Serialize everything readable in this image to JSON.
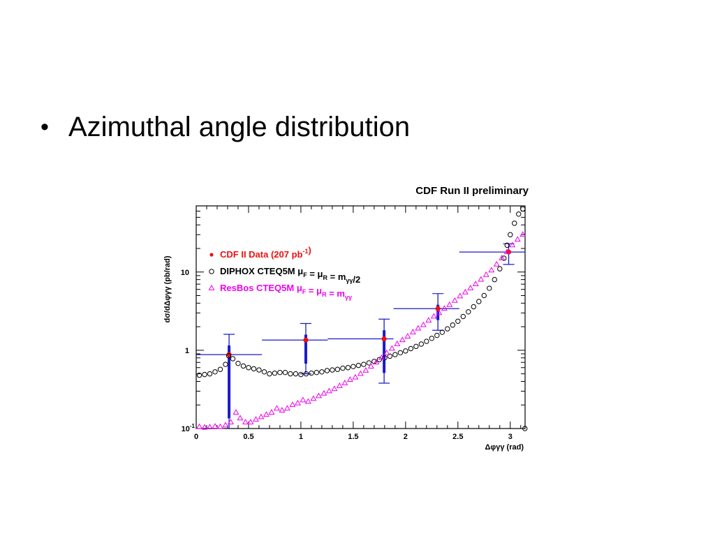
{
  "slide": {
    "bullet_symbol": "•",
    "bullet_text": "Azimuthal angle distribution"
  },
  "chart_data": {
    "type": "scatter",
    "title": "CDF Run II preliminary",
    "xlabel": "Δφγγ (rad)",
    "ylabel": "dσ/dΔφγγ (pb/rad)",
    "xlim": [
      0,
      3.14159
    ],
    "ylim": [
      0.1,
      70
    ],
    "yscale": "log",
    "x_ticks": [
      {
        "value": 0,
        "label": "0"
      },
      {
        "value": 0.5,
        "label": "0.5"
      },
      {
        "value": 1,
        "label": "1"
      },
      {
        "value": 1.5,
        "label": "1.5"
      },
      {
        "value": 2,
        "label": "2"
      },
      {
        "value": 2.5,
        "label": "2.5"
      },
      {
        "value": 3,
        "label": "3"
      }
    ],
    "y_ticks": [
      {
        "value": 0.1,
        "base": "10",
        "exp": "-1"
      },
      {
        "value": 1,
        "base": "1",
        "exp": ""
      },
      {
        "value": 10,
        "base": "10",
        "exp": ""
      }
    ],
    "legend": {
      "placement": "top-left",
      "entries": [
        {
          "parts": [
            {
              "t": "CDF II Data (207 pb"
            },
            {
              "t": "-1",
              "s": "sup"
            },
            {
              "t": ")"
            }
          ],
          "color": "#ee1111",
          "marker": "dot"
        },
        {
          "parts": [
            {
              "t": "DIPHOX CTEQ5M "
            },
            {
              "t": "μ"
            },
            {
              "t": "F",
              "s": "sub"
            },
            {
              "t": " = "
            },
            {
              "t": "μ"
            },
            {
              "t": "R",
              "s": "sub"
            },
            {
              "t": " = m"
            },
            {
              "t": "γγ",
              "s": "sub"
            },
            {
              "t": "/2"
            }
          ],
          "color": "#000000",
          "marker": "circle"
        },
        {
          "parts": [
            {
              "t": "ResBos CTEQ5M "
            },
            {
              "t": "μ"
            },
            {
              "t": "F",
              "s": "sub"
            },
            {
              "t": " = "
            },
            {
              "t": "μ"
            },
            {
              "t": "R",
              "s": "sub"
            },
            {
              "t": " = m"
            },
            {
              "t": "γγ",
              "s": "sub"
            }
          ],
          "color": "#ee00ee",
          "marker": "triangle"
        }
      ]
    },
    "series": [
      {
        "name": "CDF II Data (207 pb-1)",
        "color": "#ee1111",
        "marker": "dot",
        "points": [
          {
            "x": 0.314,
            "xlo": 0.0,
            "xhi": 0.628,
            "y": 0.88,
            "ylo": 0.1,
            "yhi": 1.6
          },
          {
            "x": 1.047,
            "xlo": 0.628,
            "xhi": 1.257,
            "y": 1.35,
            "ylo": 0.5,
            "yhi": 2.2
          },
          {
            "x": 1.795,
            "xlo": 1.257,
            "xhi": 1.885,
            "y": 1.4,
            "ylo": 0.38,
            "yhi": 2.5
          },
          {
            "x": 2.309,
            "xlo": 1.885,
            "xhi": 2.513,
            "y": 3.4,
            "ylo": 1.8,
            "yhi": 5.3
          },
          {
            "x": 2.985,
            "xlo": 2.513,
            "xhi": 3.142,
            "y": 18.0,
            "ylo": 12.5,
            "yhi": 23.0
          }
        ]
      },
      {
        "name": "DIPHOX CTEQ5M",
        "color": "#000000",
        "marker": "circle",
        "points": [
          [
            0.03,
            0.48
          ],
          [
            0.08,
            0.49
          ],
          [
            0.13,
            0.5
          ],
          [
            0.18,
            0.53
          ],
          [
            0.23,
            0.57
          ],
          [
            0.28,
            0.66
          ],
          [
            0.31,
            0.85
          ],
          [
            0.35,
            0.78
          ],
          [
            0.4,
            0.68
          ],
          [
            0.45,
            0.63
          ],
          [
            0.5,
            0.6
          ],
          [
            0.55,
            0.58
          ],
          [
            0.6,
            0.56
          ],
          [
            0.65,
            0.53
          ],
          [
            0.7,
            0.5
          ],
          [
            0.75,
            0.51
          ],
          [
            0.8,
            0.52
          ],
          [
            0.85,
            0.52
          ],
          [
            0.9,
            0.5
          ],
          [
            0.95,
            0.5
          ],
          [
            1.0,
            0.49
          ],
          [
            1.05,
            0.5
          ],
          [
            1.1,
            0.51
          ],
          [
            1.15,
            0.52
          ],
          [
            1.2,
            0.53
          ],
          [
            1.25,
            0.55
          ],
          [
            1.3,
            0.56
          ],
          [
            1.35,
            0.57
          ],
          [
            1.4,
            0.59
          ],
          [
            1.45,
            0.6
          ],
          [
            1.5,
            0.62
          ],
          [
            1.55,
            0.64
          ],
          [
            1.6,
            0.66
          ],
          [
            1.65,
            0.69
          ],
          [
            1.7,
            0.72
          ],
          [
            1.75,
            0.76
          ],
          [
            1.8,
            0.8
          ],
          [
            1.85,
            0.84
          ],
          [
            1.9,
            0.88
          ],
          [
            1.95,
            0.93
          ],
          [
            2.0,
            0.98
          ],
          [
            2.05,
            1.05
          ],
          [
            2.1,
            1.12
          ],
          [
            2.15,
            1.2
          ],
          [
            2.2,
            1.3
          ],
          [
            2.25,
            1.42
          ],
          [
            2.3,
            1.55
          ],
          [
            2.35,
            1.7
          ],
          [
            2.4,
            1.88
          ],
          [
            2.45,
            2.1
          ],
          [
            2.5,
            2.35
          ],
          [
            2.55,
            2.7
          ],
          [
            2.6,
            3.1
          ],
          [
            2.65,
            3.6
          ],
          [
            2.7,
            4.2
          ],
          [
            2.75,
            5.0
          ],
          [
            2.8,
            6.2
          ],
          [
            2.85,
            8.0
          ],
          [
            2.9,
            11.0
          ],
          [
            2.94,
            15.0
          ],
          [
            2.97,
            22.0
          ],
          [
            3.0,
            30.0
          ],
          [
            3.04,
            42.0
          ],
          [
            3.08,
            55.0
          ],
          [
            3.12,
            64.0
          ],
          [
            3.14,
            0.1
          ]
        ]
      },
      {
        "name": "ResBos CTEQ5M",
        "color": "#ee00ee",
        "marker": "triangle",
        "points": [
          [
            0.03,
            0.105
          ],
          [
            0.08,
            0.103
          ],
          [
            0.13,
            0.104
          ],
          [
            0.18,
            0.106
          ],
          [
            0.23,
            0.105
          ],
          [
            0.28,
            0.11
          ],
          [
            0.33,
            0.12
          ],
          [
            0.38,
            0.16
          ],
          [
            0.42,
            0.135
          ],
          [
            0.47,
            0.12
          ],
          [
            0.52,
            0.12
          ],
          [
            0.57,
            0.13
          ],
          [
            0.62,
            0.14
          ],
          [
            0.67,
            0.15
          ],
          [
            0.72,
            0.16
          ],
          [
            0.77,
            0.18
          ],
          [
            0.82,
            0.17
          ],
          [
            0.87,
            0.18
          ],
          [
            0.92,
            0.2
          ],
          [
            0.97,
            0.21
          ],
          [
            1.02,
            0.23
          ],
          [
            1.07,
            0.22
          ],
          [
            1.12,
            0.24
          ],
          [
            1.17,
            0.26
          ],
          [
            1.22,
            0.28
          ],
          [
            1.27,
            0.3
          ],
          [
            1.32,
            0.32
          ],
          [
            1.37,
            0.35
          ],
          [
            1.42,
            0.38
          ],
          [
            1.47,
            0.42
          ],
          [
            1.52,
            0.45
          ],
          [
            1.57,
            0.5
          ],
          [
            1.62,
            0.55
          ],
          [
            1.67,
            0.62
          ],
          [
            1.72,
            0.7
          ],
          [
            1.77,
            0.8
          ],
          [
            1.82,
            0.92
          ],
          [
            1.87,
            1.05
          ],
          [
            1.92,
            1.2
          ],
          [
            1.97,
            1.35
          ],
          [
            2.02,
            1.5
          ],
          [
            2.07,
            1.7
          ],
          [
            2.12,
            1.9
          ],
          [
            2.17,
            2.1
          ],
          [
            2.22,
            2.4
          ],
          [
            2.27,
            2.7
          ],
          [
            2.32,
            3.0
          ],
          [
            2.37,
            3.4
          ],
          [
            2.42,
            3.8
          ],
          [
            2.47,
            4.3
          ],
          [
            2.52,
            4.9
          ],
          [
            2.57,
            5.5
          ],
          [
            2.62,
            6.2
          ],
          [
            2.67,
            7.0
          ],
          [
            2.72,
            8.0
          ],
          [
            2.77,
            9.2
          ],
          [
            2.82,
            10.5
          ],
          [
            2.87,
            12.5
          ],
          [
            2.92,
            15.0
          ],
          [
            2.97,
            18.0
          ],
          [
            3.02,
            22.0
          ],
          [
            3.07,
            26.0
          ],
          [
            3.12,
            30.0
          ]
        ]
      }
    ]
  }
}
